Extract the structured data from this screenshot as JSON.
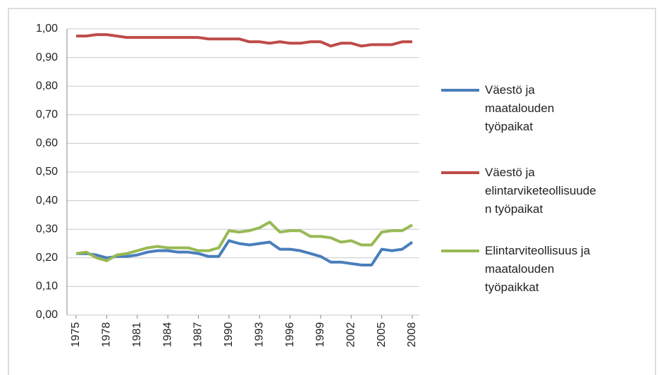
{
  "chart_data": {
    "type": "line",
    "x": [
      1975,
      1976,
      1977,
      1978,
      1979,
      1980,
      1981,
      1982,
      1983,
      1984,
      1985,
      1986,
      1987,
      1988,
      1989,
      1990,
      1991,
      1992,
      1993,
      1994,
      1995,
      1996,
      1997,
      1998,
      1999,
      2000,
      2001,
      2002,
      2003,
      2004,
      2005,
      2006,
      2007,
      2008
    ],
    "xlim": [
      1975,
      2008
    ],
    "xticks": [
      1975,
      1978,
      1981,
      1984,
      1987,
      1990,
      1993,
      1996,
      1999,
      2002,
      2005,
      2008
    ],
    "ylim": [
      0,
      1
    ],
    "yticks": [
      {
        "value": 0,
        "label": "0,00"
      },
      {
        "value": 0.1,
        "label": "0,10"
      },
      {
        "value": 0.2,
        "label": "0,20"
      },
      {
        "value": 0.3,
        "label": "0,30"
      },
      {
        "value": 0.4,
        "label": "0,40"
      },
      {
        "value": 0.5,
        "label": "0,50"
      },
      {
        "value": 0.6,
        "label": "0,60"
      },
      {
        "value": 0.7,
        "label": "0,70"
      },
      {
        "value": 0.8,
        "label": "0,80"
      },
      {
        "value": 0.9,
        "label": "0,90"
      },
      {
        "value": 1,
        "label": "1,00"
      }
    ],
    "grid": true,
    "legend": "right",
    "series": [
      {
        "name": "Väestö ja maatalouden työpaikat",
        "color": "#4a7ebb",
        "values": [
          0.215,
          0.215,
          0.21,
          0.2,
          0.205,
          0.205,
          0.21,
          0.22,
          0.225,
          0.225,
          0.22,
          0.22,
          0.215,
          0.205,
          0.205,
          0.26,
          0.25,
          0.245,
          0.25,
          0.255,
          0.23,
          0.23,
          0.225,
          0.215,
          0.205,
          0.185,
          0.185,
          0.18,
          0.175,
          0.175,
          0.23,
          0.225,
          0.23,
          0.255
        ]
      },
      {
        "name": "Väestö ja elintarviketeollisuuden työpaikat",
        "color": "#be4b48",
        "values": [
          0.975,
          0.975,
          0.98,
          0.98,
          0.975,
          0.97,
          0.97,
          0.97,
          0.97,
          0.97,
          0.97,
          0.97,
          0.97,
          0.965,
          0.965,
          0.965,
          0.965,
          0.955,
          0.955,
          0.95,
          0.955,
          0.95,
          0.95,
          0.955,
          0.955,
          0.94,
          0.95,
          0.95,
          0.94,
          0.945,
          0.945,
          0.945,
          0.955,
          0.955
        ]
      },
      {
        "name": "Elintarviteollisuus ja maatalouden työpaikkat",
        "color": "#98b954",
        "values": [
          0.215,
          0.22,
          0.2,
          0.19,
          0.21,
          0.215,
          0.225,
          0.235,
          0.24,
          0.235,
          0.235,
          0.235,
          0.225,
          0.225,
          0.235,
          0.295,
          0.29,
          0.295,
          0.305,
          0.325,
          0.29,
          0.295,
          0.295,
          0.275,
          0.275,
          0.27,
          0.255,
          0.26,
          0.245,
          0.245,
          0.29,
          0.295,
          0.295,
          0.315
        ]
      }
    ]
  }
}
